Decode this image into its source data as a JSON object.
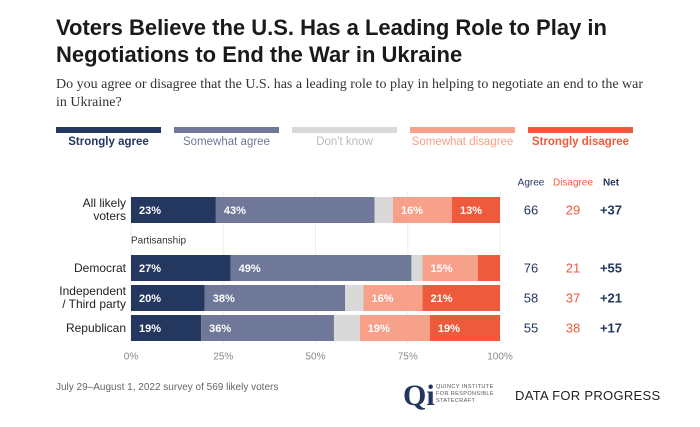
{
  "title": "Voters Believe the U.S. Has a Leading Role to Play in Negotiations to End the War in Ukraine",
  "subtitle": "Do you agree or disagree that the U.S. has a leading role to play in helping to negotiate an end to the war in Ukraine?",
  "chart_data": {
    "type": "stacked-bar-horizontal",
    "categories": [
      "All likely voters",
      "Democrat",
      "Independent / Third party",
      "Republican"
    ],
    "group_label": "Partisanship",
    "series": [
      {
        "name": "Strongly agree",
        "color": "#23375f",
        "values": [
          23,
          27,
          20,
          19
        ],
        "value_labels": [
          "23%",
          "27%",
          "20%",
          "19%"
        ]
      },
      {
        "name": "Somewhat agree",
        "color": "#6f7898",
        "values": [
          43,
          49,
          38,
          36
        ],
        "value_labels": [
          "43%",
          "49%",
          "38%",
          "36%"
        ]
      },
      {
        "name": "Don't know",
        "color": "#d9d9d9",
        "values": [
          5,
          3,
          5,
          7
        ],
        "value_labels": [
          null,
          null,
          null,
          null
        ]
      },
      {
        "name": "Somewhat disagree",
        "color": "#f7a08a",
        "values": [
          16,
          15,
          16,
          19
        ],
        "value_labels": [
          "16%",
          "15%",
          "16%",
          "19%"
        ]
      },
      {
        "name": "Strongly disagree",
        "color": "#ee5a3c",
        "values": [
          13,
          6,
          21,
          19
        ],
        "value_labels": [
          "13%",
          null,
          "21%",
          "19%"
        ]
      }
    ],
    "columns": [
      {
        "name": "Agree",
        "color": "#23375f",
        "values": [
          66,
          76,
          58,
          55
        ]
      },
      {
        "name": "Disagree",
        "color": "#ee5a3c",
        "values": [
          29,
          21,
          37,
          38
        ]
      },
      {
        "name": "Net",
        "color": "#23375f",
        "values": [
          37,
          55,
          21,
          17
        ],
        "value_labels": [
          "+37",
          "+55",
          "+21",
          "+17"
        ]
      }
    ],
    "xlim": [
      0,
      100
    ],
    "xticks": [
      {
        "value": 0,
        "label": "0%"
      },
      {
        "value": 25,
        "label": "25%"
      },
      {
        "value": 50,
        "label": "50%"
      },
      {
        "value": 75,
        "label": "75%"
      },
      {
        "value": 100,
        "label": "100%"
      }
    ],
    "grid": true
  },
  "footer": {
    "note": "July 29–August 1, 2022 survey of 569 likely voters",
    "logo_mark": "Qi",
    "logo_text": "QUINCY INSTITUTE FOR RESPONSIBLE STATECRAFT",
    "brand": "DATA FOR PROGRESS"
  }
}
